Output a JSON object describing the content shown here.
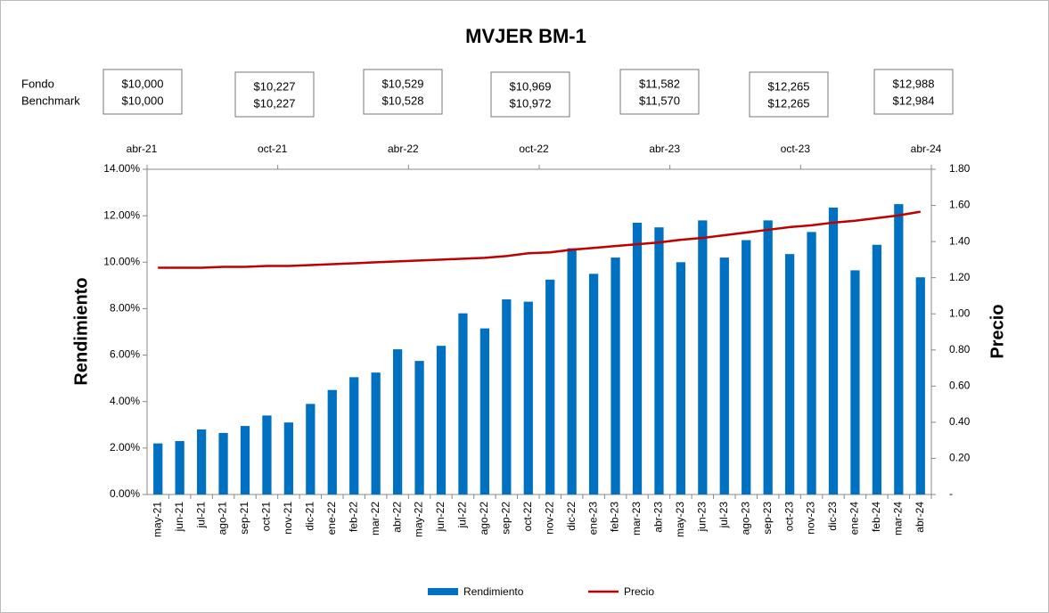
{
  "chart_data": {
    "type": "bar",
    "title": "MVJER BM-1",
    "summary": {
      "labels": [
        "Fondo",
        "Benchmark"
      ],
      "boxes": [
        [
          "$10,000",
          "$10,000"
        ],
        [
          "$10,227",
          "$10,227"
        ],
        [
          "$10,529",
          "$10,528"
        ],
        [
          "$10,969",
          "$10,972"
        ],
        [
          "$11,582",
          "$11,570"
        ],
        [
          "$12,265",
          "$12,265"
        ],
        [
          "$12,988",
          "$12,984"
        ]
      ]
    },
    "top_axis": [
      "abr-21",
      "oct-21",
      "abr-22",
      "oct-22",
      "abr-23",
      "oct-23",
      "abr-24"
    ],
    "categories": [
      "may-21",
      "jun-21",
      "jul-21",
      "ago-21",
      "sep-21",
      "oct-21",
      "nov-21",
      "dic-21",
      "ene-22",
      "feb-22",
      "mar-22",
      "abr-22",
      "may-22",
      "jun-22",
      "jul-22",
      "ago-22",
      "sep-22",
      "oct-22",
      "nov-22",
      "dic-22",
      "ene-23",
      "feb-23",
      "mar-23",
      "abr-23",
      "may-23",
      "jun-23",
      "jul-23",
      "ago-23",
      "sep-23",
      "oct-23",
      "nov-23",
      "dic-23",
      "ene-24",
      "feb-24",
      "mar-24",
      "abr-24"
    ],
    "series": [
      {
        "name": "Rendimiento",
        "color": "#0070c0",
        "type": "bar",
        "values": [
          2.2,
          2.3,
          2.8,
          2.65,
          2.95,
          3.4,
          3.1,
          3.9,
          4.5,
          5.05,
          5.25,
          6.25,
          5.75,
          6.4,
          7.8,
          7.15,
          8.4,
          8.3,
          9.25,
          10.6,
          9.5,
          10.2,
          11.7,
          11.5,
          10.0,
          11.8,
          10.2,
          10.95,
          11.8,
          10.35,
          11.3,
          12.35,
          9.65,
          10.75,
          12.5,
          9.35
        ]
      },
      {
        "name": "Precio",
        "color": "#c00000",
        "type": "line",
        "axis": "y2",
        "values": [
          1.255,
          1.255,
          1.255,
          1.26,
          1.26,
          1.265,
          1.265,
          1.27,
          1.275,
          1.28,
          1.285,
          1.29,
          1.295,
          1.3,
          1.305,
          1.31,
          1.32,
          1.335,
          1.34,
          1.355,
          1.365,
          1.375,
          1.385,
          1.395,
          1.41,
          1.42,
          1.435,
          1.45,
          1.465,
          1.48,
          1.49,
          1.505,
          1.515,
          1.53,
          1.545,
          1.565
        ]
      }
    ],
    "ylabel": "Rendimiento",
    "y2label": "Precio",
    "ylim": [
      0,
      14
    ],
    "yticks": [
      {
        "value": 0,
        "label": "0.00%"
      },
      {
        "value": 2,
        "label": "2.00%"
      },
      {
        "value": 4,
        "label": "4.00%"
      },
      {
        "value": 6,
        "label": "6.00%"
      },
      {
        "value": 8,
        "label": "8.00%"
      },
      {
        "value": 10,
        "label": "10.00%"
      },
      {
        "value": 12,
        "label": "12.00%"
      },
      {
        "value": 14,
        "label": "14.00%"
      }
    ],
    "y2lim": [
      0,
      1.8
    ],
    "y2ticks": [
      {
        "value": 0,
        "label": "-"
      },
      {
        "value": 0.2,
        "label": "0.20"
      },
      {
        "value": 0.4,
        "label": "0.40"
      },
      {
        "value": 0.6,
        "label": "0.60"
      },
      {
        "value": 0.8,
        "label": "0.80"
      },
      {
        "value": 1,
        "label": "1.00"
      },
      {
        "value": 1.2,
        "label": "1.20"
      },
      {
        "value": 1.4,
        "label": "1.40"
      },
      {
        "value": 1.6,
        "label": "1.60"
      },
      {
        "value": 1.8,
        "label": "1.80"
      }
    ],
    "legend": "bottom"
  }
}
